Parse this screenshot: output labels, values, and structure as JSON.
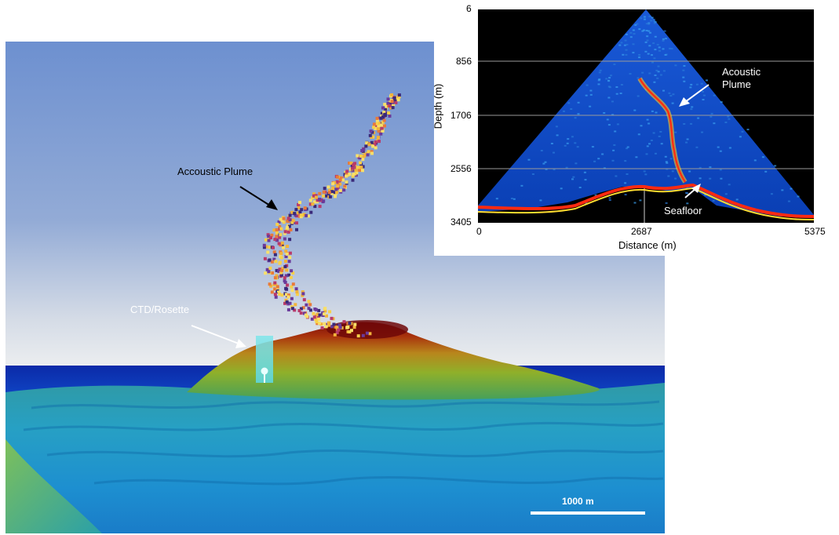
{
  "main_view": {
    "plume_label": "Accoustic Plume",
    "ctd_label": "CTD/Rosette",
    "scale_bar_label": "1000 m"
  },
  "inset": {
    "xlabel": "Distance (m)",
    "ylabel": "Depth (m)",
    "x_ticks": [
      "0",
      "2687",
      "5375"
    ],
    "y_ticks": [
      "6",
      "856",
      "1706",
      "2556",
      "3405"
    ],
    "annotations": {
      "plume_line1": "Acoustic",
      "plume_line2": "Plume",
      "seafloor": "Seafloor"
    },
    "colors": {
      "background": "#000000",
      "water": "#0a3fb4",
      "seafloor_echo": "#ff2a10"
    }
  }
}
